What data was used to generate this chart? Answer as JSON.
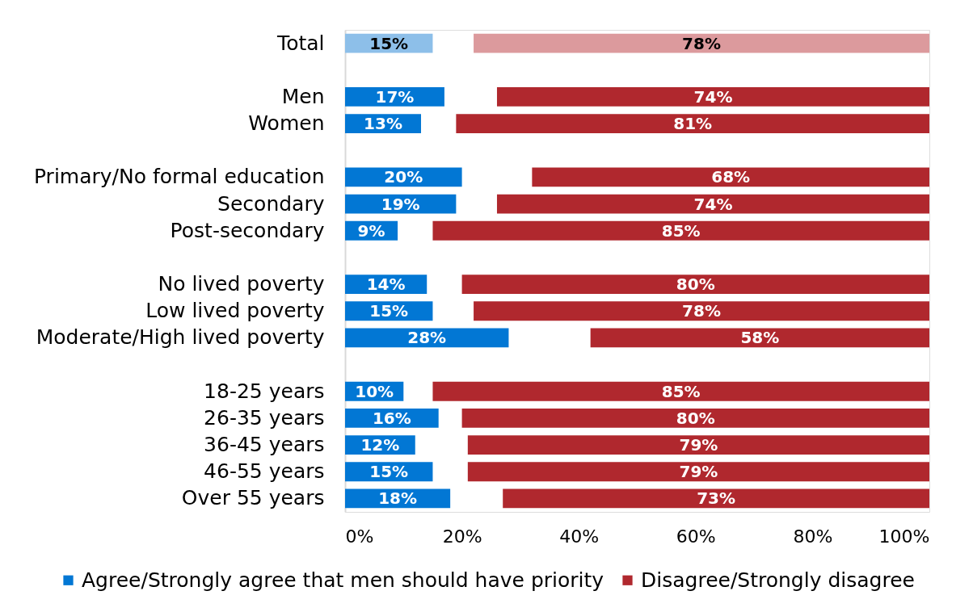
{
  "chart_data": {
    "type": "bar",
    "orientation": "horizontal",
    "categories": [
      "Total",
      null,
      "Men",
      "Women",
      null,
      "Primary/No formal education",
      "Secondary",
      "Post-secondary",
      null,
      "No lived poverty",
      "Low lived poverty",
      "Moderate/High lived poverty",
      null,
      "18-25 years",
      "26-35 years",
      "36-45 years",
      "46-55 years",
      "Over 55 years"
    ],
    "series": [
      {
        "name": "Agree/Strongly agree that men should have priority",
        "color": "#0277d4",
        "colors": [
          "#8dbfe9",
          null,
          "#0277d4",
          "#0277d4",
          null,
          "#0277d4",
          "#0277d4",
          "#0277d4",
          null,
          "#0277d4",
          "#0277d4",
          "#0277d4",
          null,
          "#0277d4",
          "#0277d4",
          "#0277d4",
          "#0277d4",
          "#0277d4"
        ],
        "values": [
          15,
          null,
          17,
          13,
          null,
          20,
          19,
          9,
          null,
          14,
          15,
          28,
          null,
          10,
          16,
          12,
          15,
          18
        ],
        "base": [
          0,
          null,
          0,
          0,
          null,
          0,
          0,
          0,
          null,
          0,
          0,
          0,
          null,
          0,
          0,
          0,
          0,
          0
        ],
        "value_labels": [
          "15%",
          null,
          "17%",
          "13%",
          null,
          "20%",
          "19%",
          "9%",
          null,
          "14%",
          "15%",
          "28%",
          null,
          "10%",
          "16%",
          "12%",
          "15%",
          "18%"
        ]
      },
      {
        "name": "Disagree/Strongly disagree",
        "color": "#b0282e",
        "colors": [
          "#dc9a9d",
          null,
          "#b0282e",
          "#b0282e",
          null,
          "#b0282e",
          "#b0282e",
          "#b0282e",
          null,
          "#b0282e",
          "#b0282e",
          "#b0282e",
          null,
          "#b0282e",
          "#b0282e",
          "#b0282e",
          "#b0282e",
          "#b0282e"
        ],
        "values": [
          78,
          null,
          74,
          81,
          null,
          68,
          74,
          85,
          null,
          80,
          78,
          58,
          null,
          85,
          80,
          79,
          79,
          73
        ],
        "base": [
          22,
          null,
          26,
          19,
          null,
          32,
          26,
          15,
          null,
          20,
          22,
          42,
          null,
          15,
          20,
          21,
          21,
          27
        ],
        "value_labels": [
          "78%",
          null,
          "74%",
          "81%",
          null,
          "68%",
          "74%",
          "85%",
          null,
          "80%",
          "78%",
          "58%",
          null,
          "85%",
          "80%",
          "79%",
          "79%",
          "73%"
        ]
      }
    ],
    "xlim": [
      0,
      100
    ],
    "xticks": [
      {
        "value": 0,
        "label": "0%"
      },
      {
        "value": 20,
        "label": "20%"
      },
      {
        "value": 40,
        "label": "40%"
      },
      {
        "value": 60,
        "label": "60%"
      },
      {
        "value": 80,
        "label": "80%"
      },
      {
        "value": 100,
        "label": "100%"
      }
    ],
    "legend": "bottom"
  }
}
